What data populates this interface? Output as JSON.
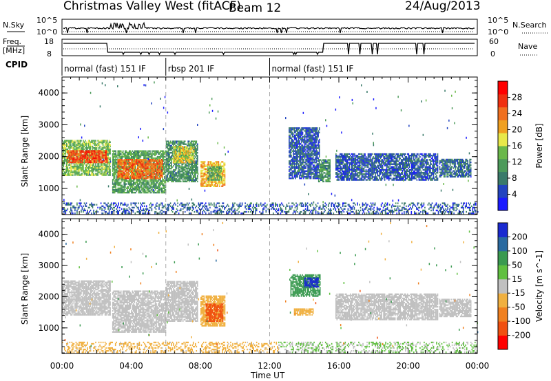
{
  "header": {
    "title": "Christmas Valley West (fitACF)",
    "beam": "Beam 12",
    "date": "24/Aug/2013"
  },
  "aux": {
    "nsky_label": "N.Sky",
    "nsearch_label": "N.Search",
    "freq_label_line1": "Freq.",
    "freq_label_line2": "[MHz]",
    "nave_label": "Nave",
    "cpid_label": "CPID",
    "nsky_ticks": [
      "10^5",
      "10^0"
    ],
    "nsearch_ticks": [
      "10^5",
      "10^0"
    ],
    "freq_ticks": [
      "18",
      "8"
    ],
    "nave_ticks": [
      "60",
      "0"
    ]
  },
  "cpid_segments": [
    {
      "label": "normal (fast) 151 IF",
      "start": 0,
      "end": 6
    },
    {
      "label": "rbsp 201 IF",
      "start": 6,
      "end": 12
    },
    {
      "label": "normal (fast) 151 IF",
      "start": 12,
      "end": 24
    }
  ],
  "colors": {
    "power": [
      "#1a1aff",
      "#2244c0",
      "#3a7a6a",
      "#4c9a5a",
      "#6ab84a",
      "#e8e84a",
      "#f0a020",
      "#f07020",
      "#f03010",
      "#ff0000"
    ],
    "velocity": [
      "#ff0000",
      "#f05010",
      "#f08020",
      "#f0b040",
      "#c0c0c0",
      "#60c040",
      "#3a9a50",
      "#2a6aa0",
      "#1a2ad0"
    ]
  },
  "chart_data": [
    {
      "type": "heatmap",
      "title": "",
      "xlabel": "Time UT",
      "ylabel": "Slant Range [km]",
      "xlim": [
        0,
        24
      ],
      "ylim": [
        180,
        4500
      ],
      "x_ticks": [
        "00:00",
        "04:00",
        "08:00",
        "12:00",
        "16:00",
        "20:00",
        "00:00"
      ],
      "y_ticks": [
        1000,
        2000,
        3000,
        4000
      ],
      "colorbar_label": "Power [dB]",
      "colorbar_ticks": [
        4,
        8,
        12,
        16,
        20,
        24,
        28
      ],
      "colorbar_range": [
        0,
        32
      ],
      "regions": [
        {
          "t0": 0.0,
          "t1": 2.8,
          "r0": 1400,
          "r1": 2500,
          "v": 14
        },
        {
          "t0": 0.3,
          "t1": 2.6,
          "r0": 1800,
          "r1": 2200,
          "v": 26
        },
        {
          "t0": 2.9,
          "t1": 6.0,
          "r0": 850,
          "r1": 2200,
          "v": 12
        },
        {
          "t0": 3.2,
          "t1": 5.8,
          "r0": 1300,
          "r1": 1900,
          "v": 24
        },
        {
          "t0": 6.0,
          "t1": 7.8,
          "r0": 1200,
          "r1": 2500,
          "v": 10
        },
        {
          "t0": 6.4,
          "t1": 7.6,
          "r0": 1800,
          "r1": 2300,
          "v": 18
        },
        {
          "t0": 8.0,
          "t1": 9.4,
          "r0": 1050,
          "r1": 1850,
          "v": 20
        },
        {
          "t0": 8.4,
          "t1": 9.2,
          "r0": 1250,
          "r1": 1700,
          "v": 12
        },
        {
          "t0": 13.1,
          "t1": 14.9,
          "r0": 1300,
          "r1": 2900,
          "v": 6
        },
        {
          "t0": 14.8,
          "t1": 15.5,
          "r0": 1200,
          "r1": 1900,
          "v": 10
        },
        {
          "t0": 15.8,
          "t1": 21.7,
          "r0": 1250,
          "r1": 2100,
          "v": 6
        },
        {
          "t0": 21.8,
          "t1": 23.6,
          "r0": 1350,
          "r1": 1900,
          "v": 7
        },
        {
          "t0": 0.0,
          "t1": 24.0,
          "r0": 200,
          "r1": 520,
          "v": 6
        }
      ]
    },
    {
      "type": "heatmap",
      "title": "",
      "xlabel": "Time UT",
      "ylabel": "Slant Range [km]",
      "xlim": [
        0,
        24
      ],
      "ylim": [
        180,
        4500
      ],
      "x_ticks": [
        "00:00",
        "04:00",
        "08:00",
        "12:00",
        "16:00",
        "20:00",
        "00:00"
      ],
      "y_ticks": [
        1000,
        2000,
        3000,
        4000
      ],
      "colorbar_label": "Velocity [m s^-1]",
      "colorbar_ticks": [
        -200,
        -100,
        -50,
        -15,
        15,
        50,
        100,
        200
      ],
      "colorbar_range": [
        -250,
        250
      ],
      "regions": [
        {
          "t0": 0.0,
          "t1": 2.8,
          "r0": 1400,
          "r1": 2500,
          "v": 0
        },
        {
          "t0": 2.9,
          "t1": 6.0,
          "r0": 850,
          "r1": 2200,
          "v": 0
        },
        {
          "t0": 6.0,
          "t1": 7.8,
          "r0": 1200,
          "r1": 2500,
          "v": 0
        },
        {
          "t0": 8.0,
          "t1": 9.4,
          "r0": 1050,
          "r1": 2000,
          "v": -60
        },
        {
          "t0": 8.3,
          "t1": 9.3,
          "r0": 1200,
          "r1": 1750,
          "v": -150
        },
        {
          "t0": 13.2,
          "t1": 14.9,
          "r0": 2000,
          "r1": 2700,
          "v": 120
        },
        {
          "t0": 14.0,
          "t1": 14.8,
          "r0": 2300,
          "r1": 2600,
          "v": 230
        },
        {
          "t0": 13.4,
          "t1": 14.5,
          "r0": 1400,
          "r1": 1600,
          "v": -40
        },
        {
          "t0": 15.8,
          "t1": 21.7,
          "r0": 1250,
          "r1": 2100,
          "v": 0
        },
        {
          "t0": 21.8,
          "t1": 23.6,
          "r0": 1350,
          "r1": 1900,
          "v": 0
        },
        {
          "t0": 0.0,
          "t1": 12.5,
          "r0": 200,
          "r1": 520,
          "v": -40
        },
        {
          "t0": 12.5,
          "t1": 24.0,
          "r0": 200,
          "r1": 520,
          "v": 30
        }
      ]
    }
  ]
}
